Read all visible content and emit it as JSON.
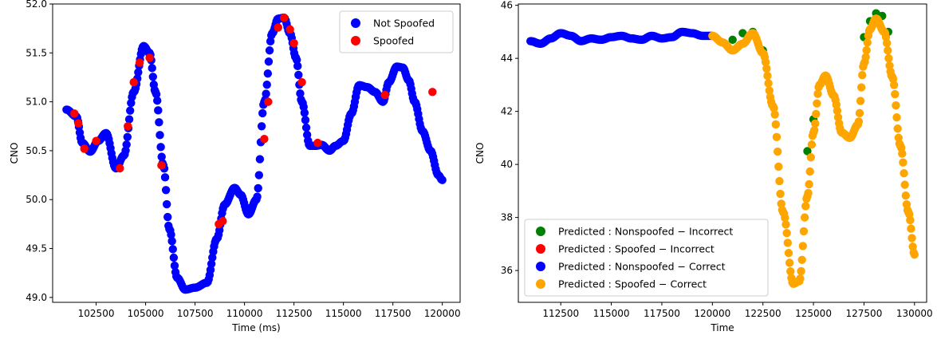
{
  "chart_data": [
    {
      "type": "scatter",
      "title": "",
      "xlabel": "Time (ms)",
      "ylabel": "CNO",
      "xlim": [
        100300,
        120900
      ],
      "ylim": [
        48.95,
        52.0
      ],
      "xticks": [
        102500,
        105000,
        107500,
        110000,
        112500,
        115000,
        117500,
        120000
      ],
      "xtick_labels": [
        "102500",
        "105000",
        "107500",
        "110000",
        "112500",
        "115000",
        "117500",
        "120000"
      ],
      "yticks": [
        49.0,
        49.5,
        50.0,
        50.5,
        51.0,
        51.5,
        52.0
      ],
      "ytick_labels": [
        "49.0",
        "49.5",
        "50.0",
        "50.5",
        "51.0",
        "51.5",
        "52.0"
      ],
      "grid": false,
      "legend_position": "top-right",
      "series": [
        {
          "name": "Not Spoofed",
          "color": "#0000ff",
          "x": [
            101000,
            101500,
            101800,
            102200,
            102600,
            103000,
            103500,
            103900,
            104400,
            104900,
            105200,
            105500,
            105900,
            106200,
            106600,
            107000,
            107500,
            108100,
            108600,
            109000,
            109500,
            109800,
            110200,
            110600,
            111000,
            111400,
            111700,
            112000,
            112300,
            112600,
            112900,
            113300,
            113600,
            113900,
            114300,
            114600,
            115000,
            115400,
            115800,
            116200,
            116600,
            117000,
            117300,
            117700,
            118000,
            118300,
            118600,
            119000,
            119400,
            119800,
            120000
          ],
          "y": [
            50.92,
            50.85,
            50.58,
            50.49,
            50.6,
            50.68,
            50.32,
            50.45,
            51.1,
            51.57,
            51.5,
            51.1,
            50.35,
            49.7,
            49.2,
            49.08,
            49.1,
            49.15,
            49.6,
            49.95,
            50.12,
            50.05,
            49.85,
            50.0,
            51.0,
            51.7,
            51.85,
            51.86,
            51.7,
            51.45,
            51.0,
            50.55,
            50.55,
            50.56,
            50.5,
            50.55,
            50.6,
            50.88,
            51.17,
            51.15,
            51.1,
            51.0,
            51.2,
            51.36,
            51.35,
            51.22,
            51.0,
            50.7,
            50.5,
            50.25,
            50.2
          ]
        },
        {
          "name": "Spoofed",
          "color": "#ff0000",
          "x": [
            101400,
            101600,
            101900,
            102500,
            103700,
            104100,
            104400,
            104700,
            105200,
            105800,
            108700,
            108900,
            111000,
            111200,
            111700,
            112000,
            112300,
            112500,
            112900,
            113700,
            117100,
            119500
          ],
          "y": [
            50.88,
            50.78,
            50.52,
            50.6,
            50.32,
            50.75,
            51.2,
            51.4,
            51.45,
            50.35,
            49.75,
            49.78,
            50.62,
            51.0,
            51.76,
            51.86,
            51.74,
            51.6,
            51.2,
            50.58,
            51.07,
            51.1
          ]
        }
      ]
    },
    {
      "type": "scatter",
      "title": "",
      "xlabel": "Time",
      "ylabel": "CNO",
      "xlim": [
        110400,
        130600
      ],
      "ylim": [
        34.8,
        46.05
      ],
      "xticks": [
        112500,
        115000,
        117500,
        120000,
        122500,
        125000,
        127500,
        130000
      ],
      "xtick_labels": [
        "112500",
        "115000",
        "117500",
        "120000",
        "122500",
        "125000",
        "127500",
        "130000"
      ],
      "yticks": [
        36,
        38,
        40,
        42,
        44,
        46
      ],
      "ytick_labels": [
        "36",
        "38",
        "40",
        "42",
        "44",
        "46"
      ],
      "grid": false,
      "legend_position": "bottom-left",
      "series": [
        {
          "name": "Predicted : Nonspoofed − Incorrect",
          "color": "#008000",
          "x": [
            121000,
            121500,
            122000,
            122500,
            127500,
            127800,
            128100,
            128400,
            128700,
            125000,
            124700
          ],
          "y": [
            44.7,
            44.95,
            45.0,
            44.3,
            44.8,
            45.4,
            45.7,
            45.6,
            45.0,
            41.7,
            40.5
          ]
        },
        {
          "name": "Predicted : Spoofed − Incorrect",
          "color": "#ff0000",
          "x": [],
          "y": []
        },
        {
          "name": "Predicted : Nonspoofed − Correct",
          "color": "#0000ff",
          "x": [
            111000,
            111500,
            112000,
            112500,
            113000,
            113500,
            114000,
            114500,
            115000,
            115500,
            116000,
            116500,
            117000,
            117500,
            118000,
            118500,
            119000,
            119500,
            120000
          ],
          "y": [
            44.65,
            44.55,
            44.75,
            44.95,
            44.85,
            44.65,
            44.75,
            44.7,
            44.8,
            44.85,
            44.75,
            44.7,
            44.85,
            44.75,
            44.8,
            45.0,
            44.95,
            44.85,
            44.85
          ]
        },
        {
          "name": "Predicted : Spoofed − Correct",
          "color": "#ffa500",
          "x": [
            120000,
            120500,
            121000,
            121500,
            122000,
            122500,
            123000,
            123500,
            124000,
            124300,
            124700,
            125000,
            125300,
            125600,
            126000,
            126400,
            126800,
            127200,
            127500,
            127800,
            128100,
            128500,
            128900,
            129300,
            129700,
            130000
          ],
          "y": [
            44.85,
            44.6,
            44.3,
            44.55,
            44.95,
            44.2,
            42.2,
            38.2,
            35.5,
            35.6,
            38.8,
            41.2,
            43.0,
            43.35,
            42.6,
            41.2,
            41.0,
            41.5,
            43.8,
            45.1,
            45.5,
            45.0,
            43.3,
            40.7,
            38.2,
            36.6
          ]
        }
      ]
    }
  ]
}
